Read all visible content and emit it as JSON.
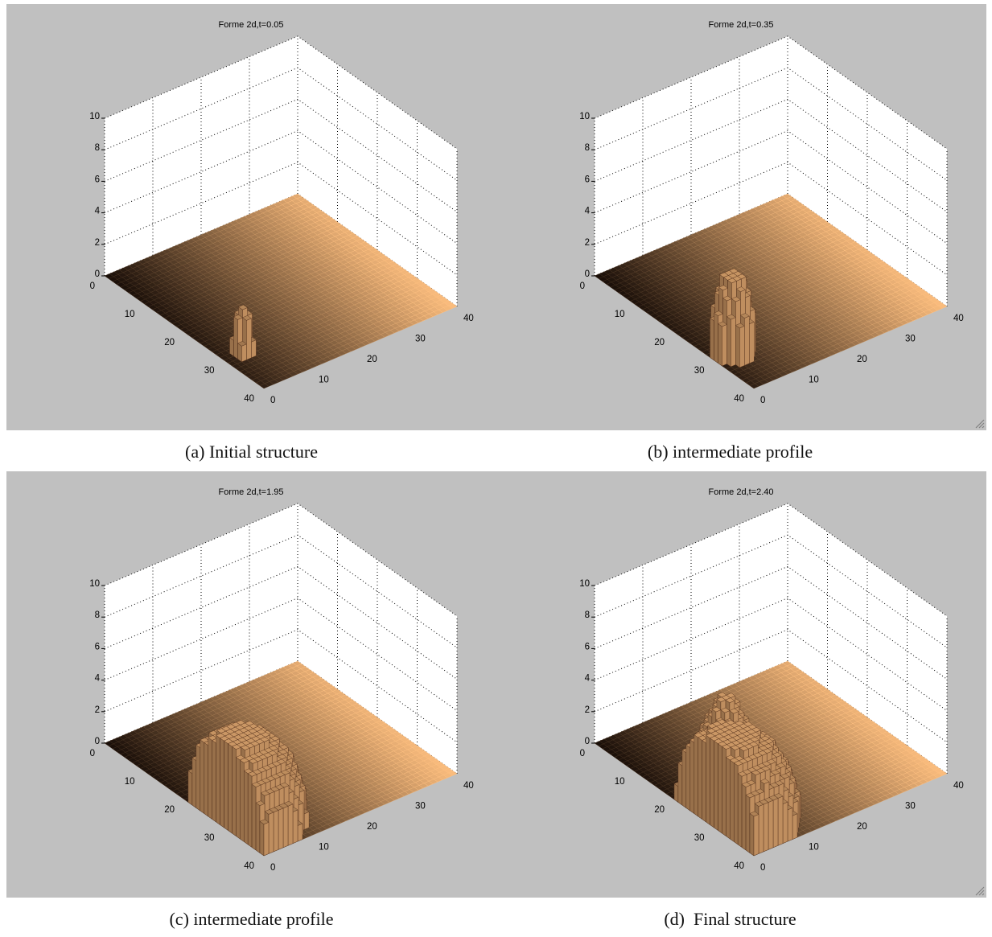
{
  "figure": {
    "panels": [
      {
        "caption": "(a) Initial structure",
        "window": 0,
        "side": "left"
      },
      {
        "caption": "(b) intermediate profile",
        "window": 0,
        "side": "right"
      },
      {
        "caption": "(c) intermediate profile",
        "window": 1,
        "side": "left"
      },
      {
        "caption": "(d)  Final structure",
        "window": 1,
        "side": "right"
      }
    ],
    "colors": {
      "window_bg": "#c0c0c0",
      "axes_bg": "#ffffff",
      "grid": "#000000",
      "surface_low": "#1a0f09",
      "surface_high": "#ffc080"
    },
    "icons": {
      "resize": "resize-grip-icon"
    }
  },
  "chart_data": [
    {
      "type": "surface3d",
      "title": "Forme 2d,t=0.05",
      "x_ticks": [
        "0",
        "10",
        "20",
        "30",
        "40"
      ],
      "y_ticks": [
        "0",
        "10",
        "20",
        "30",
        "40"
      ],
      "z_ticks": [
        "0",
        "2",
        "4",
        "6",
        "8",
        "10"
      ],
      "xlim": [
        0,
        40
      ],
      "ylim": [
        0,
        40
      ],
      "zlim": [
        0,
        10
      ],
      "grid": true,
      "colormap": "copper",
      "bumps": [
        {
          "x_center": 30,
          "y_center": 3,
          "radius": 1.5,
          "peak": 3.0
        }
      ]
    },
    {
      "type": "surface3d",
      "title": "Forme 2d,t=0.35",
      "x_ticks": [
        "0",
        "10",
        "20",
        "30",
        "40"
      ],
      "y_ticks": [
        "0",
        "10",
        "20",
        "30",
        "40"
      ],
      "z_ticks": [
        "0",
        "2",
        "4",
        "6",
        "8",
        "10"
      ],
      "xlim": [
        0,
        40
      ],
      "ylim": [
        0,
        40
      ],
      "zlim": [
        0,
        10
      ],
      "grid": true,
      "colormap": "copper",
      "bumps": [
        {
          "x_center": 30,
          "y_center": 3,
          "radius": 3.5,
          "peak": 5.0
        }
      ]
    },
    {
      "type": "surface3d",
      "title": "Forme 2d,t=1.95",
      "x_ticks": [
        "0",
        "10",
        "20",
        "30",
        "40"
      ],
      "y_ticks": [
        "0",
        "10",
        "20",
        "30",
        "40"
      ],
      "z_ticks": [
        "0",
        "2",
        "4",
        "6",
        "8",
        "10"
      ],
      "xlim": [
        0,
        40
      ],
      "ylim": [
        0,
        40
      ],
      "zlim": [
        0,
        10
      ],
      "grid": true,
      "colormap": "copper",
      "bumps": [
        {
          "x_center": 30,
          "y_center": 3,
          "radius": 10,
          "peak": 5.5
        }
      ]
    },
    {
      "type": "surface3d",
      "title": "Forme 2d,t=2.40",
      "x_ticks": [
        "0",
        "10",
        "20",
        "30",
        "40"
      ],
      "y_ticks": [
        "0",
        "10",
        "20",
        "30",
        "40"
      ],
      "z_ticks": [
        "0",
        "2",
        "4",
        "6",
        "8",
        "10"
      ],
      "xlim": [
        0,
        40
      ],
      "ylim": [
        0,
        40
      ],
      "zlim": [
        0,
        10
      ],
      "grid": true,
      "colormap": "copper",
      "bumps": [
        {
          "x_center": 30,
          "y_center": 3,
          "radius": 10.5,
          "peak": 5.5
        },
        {
          "x_center": 21,
          "y_center": 9,
          "radius": 4.5,
          "peak": 5.2
        }
      ]
    }
  ]
}
